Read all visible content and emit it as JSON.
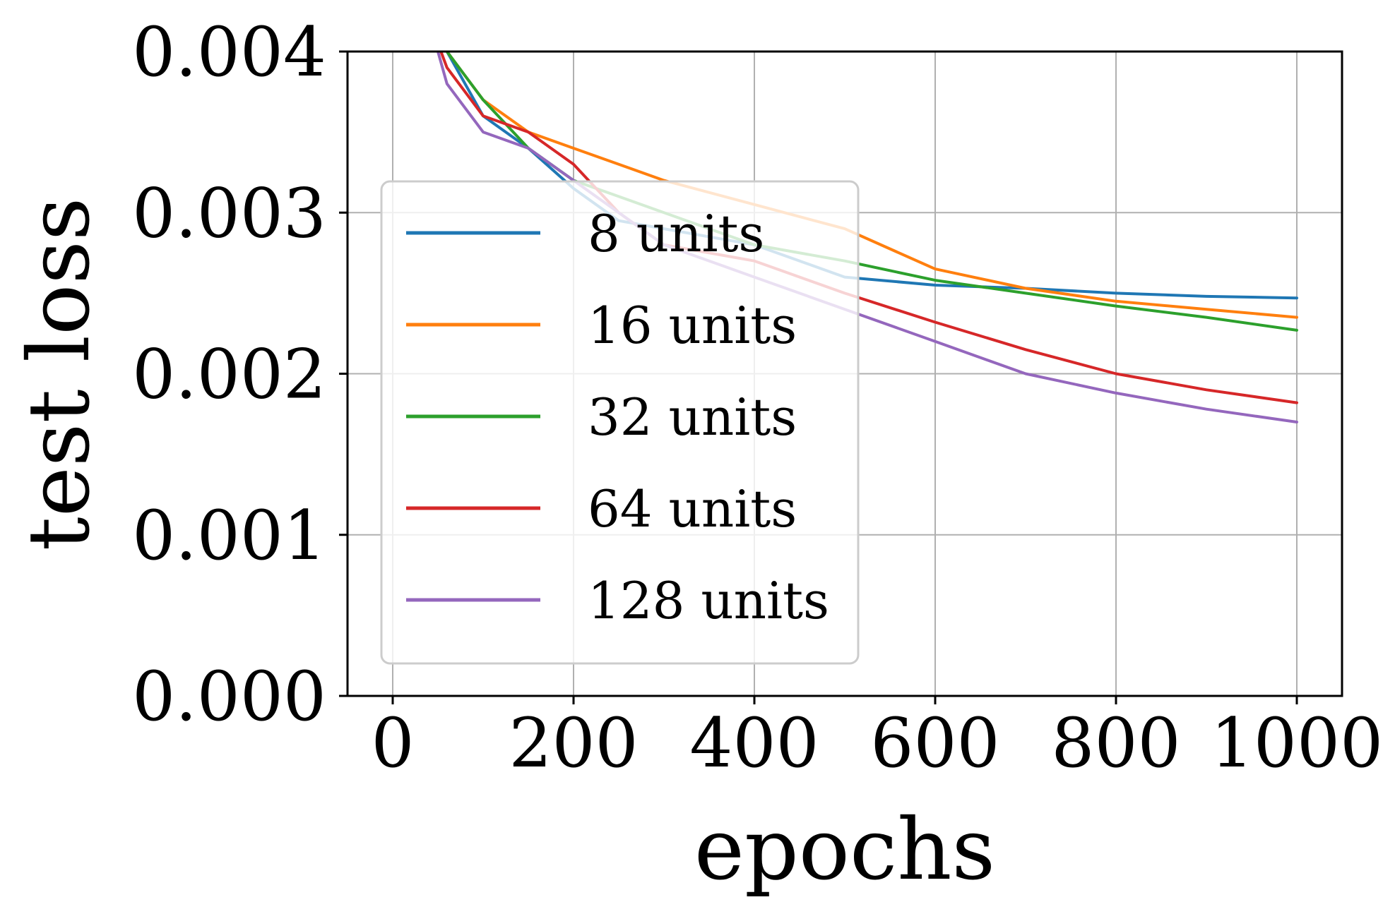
{
  "chart_data": {
    "type": "line",
    "title": "",
    "xlabel": "epochs",
    "ylabel": "test loss",
    "xlim": [
      -50,
      1050
    ],
    "ylim": [
      0.0,
      0.004
    ],
    "x_ticks": [
      0,
      200,
      400,
      600,
      800,
      1000
    ],
    "y_ticks": [
      0.0,
      0.001,
      0.002,
      0.003,
      0.004
    ],
    "x_tick_labels": [
      "0",
      "200",
      "400",
      "600",
      "800",
      "1000"
    ],
    "y_tick_labels": [
      "0.000",
      "0.001",
      "0.002",
      "0.003",
      "0.004"
    ],
    "grid": true,
    "legend_position": "center-left",
    "x": [
      40,
      60,
      100,
      150,
      200,
      250,
      300,
      400,
      500,
      600,
      700,
      800,
      900,
      1000
    ],
    "series": [
      {
        "name": "8 units",
        "color": "#1f77b4",
        "values": [
          0.0042,
          0.004,
          0.0036,
          0.0034,
          0.00315,
          0.00295,
          0.0029,
          0.0028,
          0.0026,
          0.00255,
          0.00253,
          0.0025,
          0.00248,
          0.00247
        ]
      },
      {
        "name": "16 units",
        "color": "#ff7f0e",
        "values": [
          0.0043,
          0.004,
          0.0037,
          0.0035,
          0.0034,
          0.0033,
          0.0032,
          0.00305,
          0.0029,
          0.00265,
          0.00253,
          0.00245,
          0.0024,
          0.00235
        ]
      },
      {
        "name": "32 units",
        "color": "#2ca02c",
        "values": [
          0.0043,
          0.004,
          0.0037,
          0.0034,
          0.0032,
          0.0031,
          0.003,
          0.0028,
          0.0027,
          0.00258,
          0.0025,
          0.00242,
          0.00235,
          0.00227
        ]
      },
      {
        "name": "64 units",
        "color": "#d62728",
        "values": [
          0.0042,
          0.0039,
          0.0036,
          0.0035,
          0.0033,
          0.003,
          0.0028,
          0.0027,
          0.0025,
          0.00232,
          0.00215,
          0.002,
          0.0019,
          0.00182
        ]
      },
      {
        "name": "128 units",
        "color": "#9467bd",
        "values": [
          0.0042,
          0.0038,
          0.0035,
          0.0034,
          0.0032,
          0.003,
          0.0028,
          0.0026,
          0.0024,
          0.0022,
          0.002,
          0.00188,
          0.00178,
          0.0017
        ]
      }
    ]
  }
}
